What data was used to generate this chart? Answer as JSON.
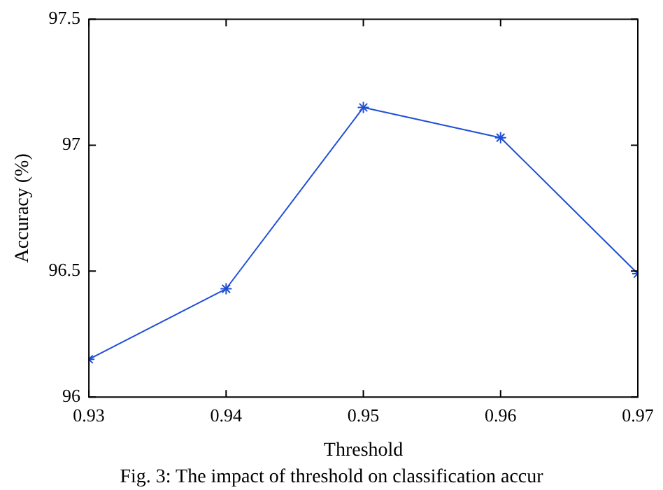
{
  "chart_data": {
    "type": "line",
    "xlabel": "Threshold",
    "ylabel": "Accuracy (%)",
    "x": [
      0.93,
      0.94,
      0.95,
      0.96,
      0.97
    ],
    "series": [
      {
        "color": "#1f4fd6",
        "values": [
          96.15,
          96.43,
          97.15,
          97.03,
          96.49
        ]
      }
    ],
    "xlim": [
      0.93,
      0.97
    ],
    "xticks": [
      0.93,
      0.94,
      0.95,
      0.96,
      0.97
    ],
    "ylim": [
      96,
      97.5
    ],
    "yticks": [
      96,
      96.5,
      97,
      97.5
    ],
    "grid": false,
    "legend": false,
    "marker": "cross",
    "line_style": "solid",
    "annotations": [
      "Fig. 3: The impact of threshold on classification accur"
    ]
  }
}
